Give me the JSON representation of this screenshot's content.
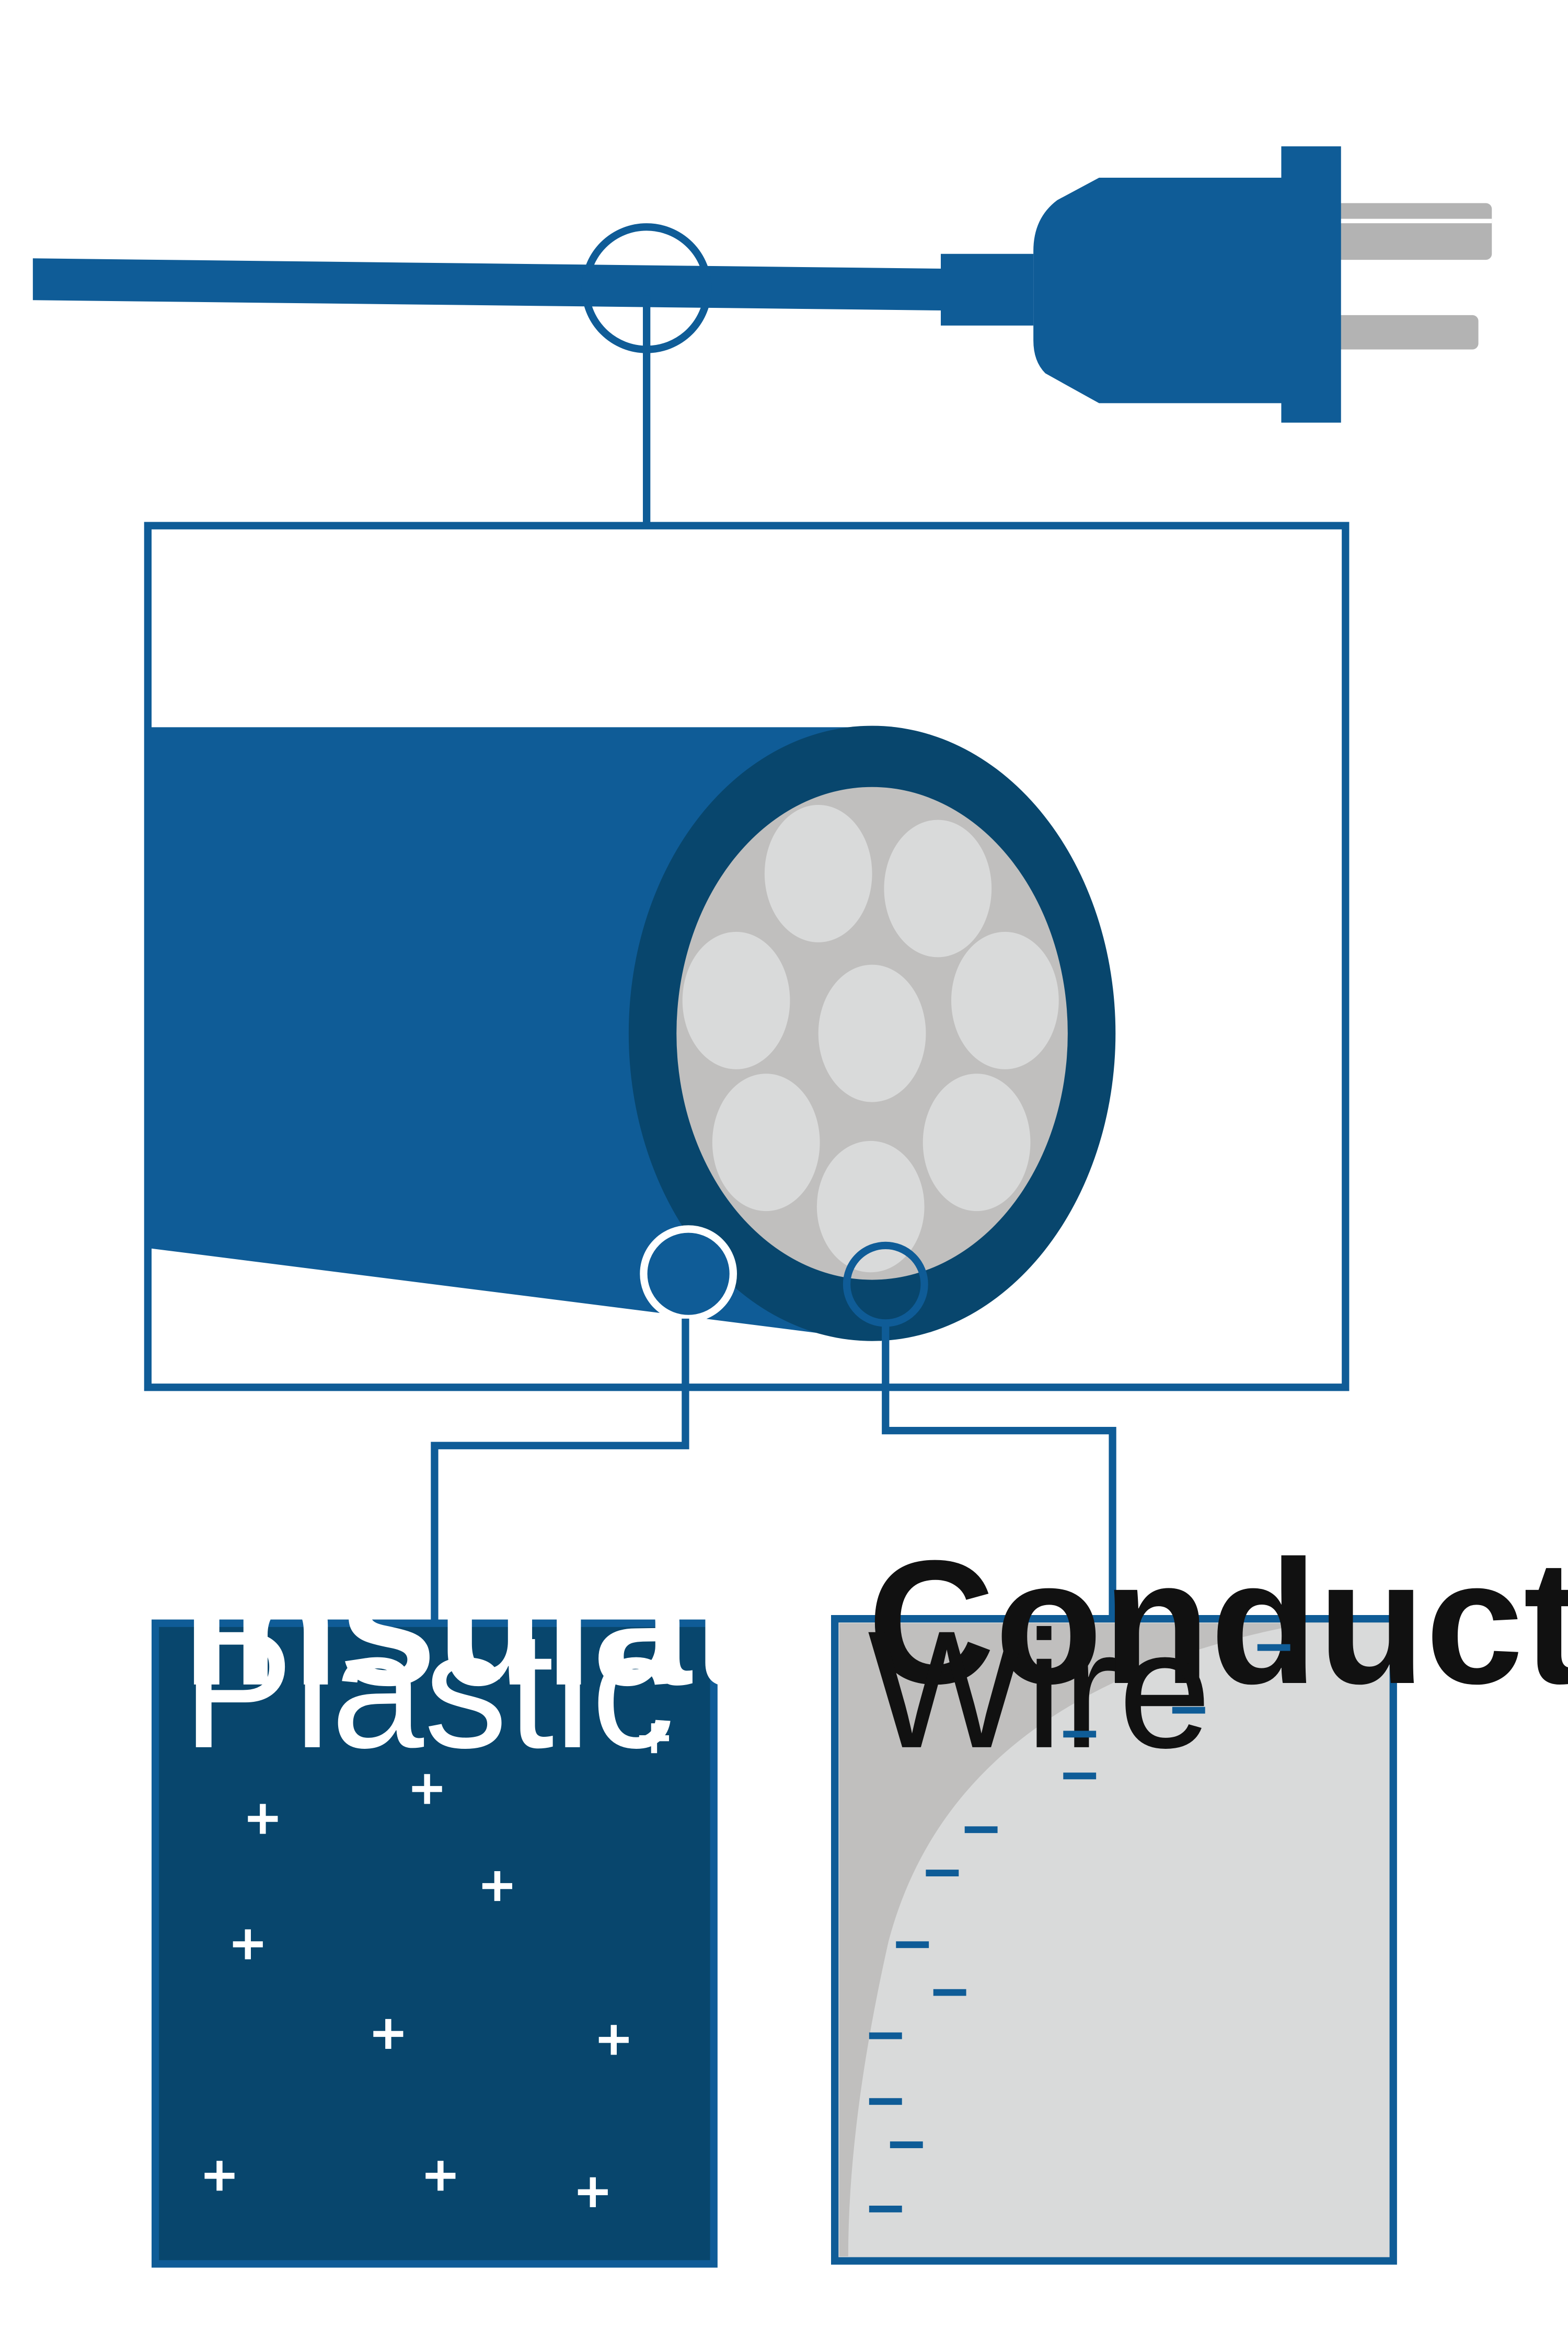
{
  "colors": {
    "blue": "#0f5c97",
    "dark_blue": "#08466d",
    "prong_gray": "#b3b3b3",
    "strand_dark": "#c0bfbe",
    "strand_light": "#d9dada",
    "white": "#ffffff",
    "text_dark": "#111111"
  },
  "insulator": {
    "title": "Insulator",
    "subtitle": "Plastic",
    "symbol": "+",
    "charge_count": 11
  },
  "conductor": {
    "title": "Conductor",
    "subtitle": "Wire",
    "symbol": "−",
    "charge_count": 16
  },
  "icons": {
    "plug": "electric-plug-icon",
    "cable_cross_section": "cable-cross-section-icon"
  }
}
